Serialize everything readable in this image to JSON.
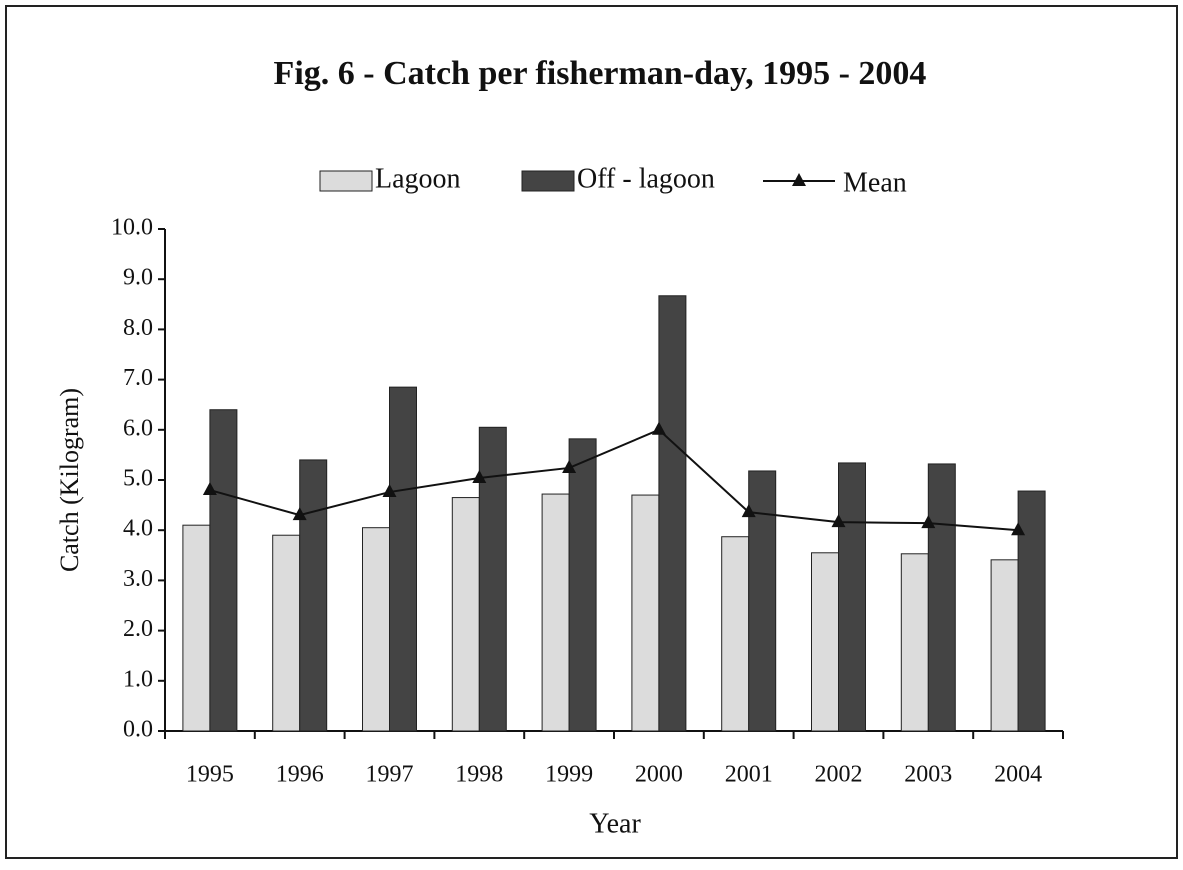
{
  "chart_data": {
    "type": "bar",
    "title": "Fig. 6 - Catch per fisherman-day,  1995 - 2004",
    "x_label": "Year",
    "y_label": "Catch (Kilogram)",
    "categories": [
      "1995",
      "1996",
      "1997",
      "1998",
      "1999",
      "2000",
      "2001",
      "2002",
      "2003",
      "2004"
    ],
    "series": [
      {
        "name": "Lagoon",
        "type": "bar",
        "color": "#dcdcdc",
        "values": [
          4.1,
          3.9,
          4.05,
          4.65,
          4.72,
          4.7,
          3.87,
          3.55,
          3.53,
          3.41
        ]
      },
      {
        "name": "Off - lagoon",
        "type": "bar",
        "color": "#444444",
        "values": [
          6.4,
          5.4,
          6.85,
          6.05,
          5.82,
          8.67,
          5.18,
          5.34,
          5.32,
          4.78
        ]
      },
      {
        "name": "Mean",
        "type": "line",
        "color": "#111111",
        "values": [
          4.8,
          4.3,
          4.76,
          5.04,
          5.24,
          6.0,
          4.36,
          4.16,
          4.14,
          4.0
        ]
      }
    ],
    "ylim": [
      0,
      10
    ],
    "yticks": [
      {
        "value": 0,
        "label": "0.0"
      },
      {
        "value": 1,
        "label": "1.0"
      },
      {
        "value": 2,
        "label": "2.0"
      },
      {
        "value": 3,
        "label": "3.0"
      },
      {
        "value": 4,
        "label": "4.0"
      },
      {
        "value": 5,
        "label": "5.0"
      },
      {
        "value": 6,
        "label": "6.0"
      },
      {
        "value": 7,
        "label": "7.0"
      },
      {
        "value": 8,
        "label": "8.0"
      },
      {
        "value": 9,
        "label": "9.0"
      },
      {
        "value": 10,
        "label": "10.0"
      }
    ],
    "grid": false,
    "legend": "top"
  }
}
